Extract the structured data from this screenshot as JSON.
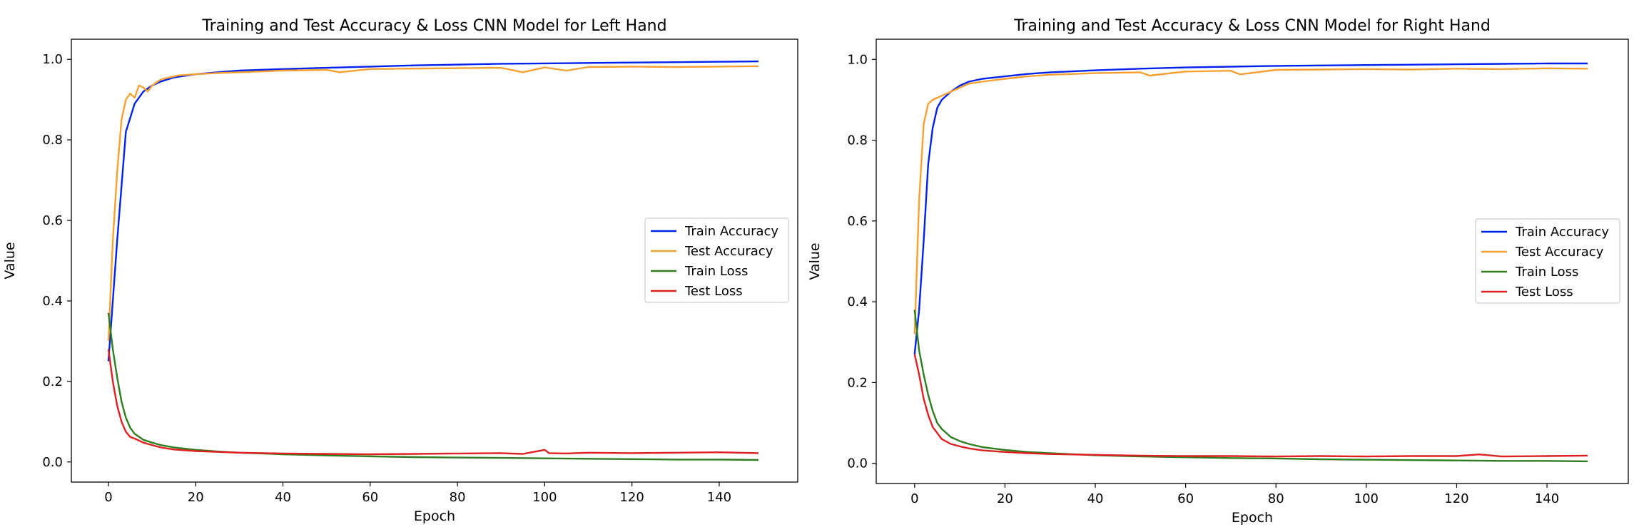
{
  "chart_data": [
    {
      "type": "line",
      "title": "Training and Test Accuracy & Loss CNN Model for Left Hand",
      "xlabel": "Epoch",
      "ylabel": "Value",
      "xlim": [
        -8.5,
        158
      ],
      "ylim": [
        -0.05,
        1.05
      ],
      "xticks": [
        0,
        20,
        40,
        60,
        80,
        100,
        120,
        140
      ],
      "yticks": [
        0.0,
        0.2,
        0.4,
        0.6,
        0.8,
        1.0
      ],
      "ytick_labels": [
        "0.0",
        "0.2",
        "0.4",
        "0.6",
        "0.8",
        "1.0"
      ],
      "grid": false,
      "legend": "center-right",
      "series": [
        {
          "name": "Train Accuracy",
          "color": "#0022ee",
          "x": [
            0,
            2,
            4,
            6,
            8,
            10,
            12,
            15,
            20,
            25,
            30,
            40,
            50,
            60,
            70,
            80,
            90,
            100,
            110,
            120,
            130,
            140,
            149
          ],
          "y": [
            0.25,
            0.55,
            0.82,
            0.89,
            0.92,
            0.935,
            0.945,
            0.955,
            0.963,
            0.968,
            0.972,
            0.976,
            0.979,
            0.982,
            0.985,
            0.987,
            0.989,
            0.99,
            0.991,
            0.992,
            0.993,
            0.994,
            0.995
          ]
        },
        {
          "name": "Test Accuracy",
          "color": "#f5a030",
          "x": [
            0,
            1,
            2,
            3,
            4,
            5,
            6,
            7,
            8,
            9,
            10,
            12,
            14,
            16,
            20,
            25,
            30,
            40,
            50,
            53,
            60,
            70,
            80,
            90,
            95,
            100,
            105,
            110,
            120,
            130,
            140,
            149
          ],
          "y": [
            0.3,
            0.55,
            0.72,
            0.85,
            0.9,
            0.915,
            0.905,
            0.935,
            0.93,
            0.92,
            0.935,
            0.95,
            0.955,
            0.96,
            0.963,
            0.966,
            0.968,
            0.972,
            0.974,
            0.968,
            0.976,
            0.977,
            0.978,
            0.979,
            0.968,
            0.98,
            0.972,
            0.981,
            0.982,
            0.981,
            0.982,
            0.983
          ]
        },
        {
          "name": "Train Loss",
          "color": "#2e7d1e",
          "x": [
            0,
            1,
            2,
            3,
            4,
            5,
            6,
            8,
            10,
            12,
            15,
            20,
            25,
            30,
            40,
            50,
            60,
            70,
            80,
            90,
            100,
            110,
            120,
            130,
            140,
            149
          ],
          "y": [
            0.37,
            0.28,
            0.21,
            0.15,
            0.11,
            0.085,
            0.07,
            0.055,
            0.048,
            0.042,
            0.036,
            0.03,
            0.026,
            0.023,
            0.019,
            0.016,
            0.014,
            0.012,
            0.011,
            0.01,
            0.009,
            0.008,
            0.007,
            0.006,
            0.006,
            0.005
          ]
        },
        {
          "name": "Test Loss",
          "color": "#e02020",
          "x": [
            0,
            1,
            2,
            3,
            4,
            5,
            6,
            8,
            10,
            12,
            15,
            20,
            25,
            30,
            40,
            50,
            60,
            70,
            80,
            90,
            95,
            100,
            101,
            105,
            110,
            120,
            130,
            140,
            149
          ],
          "y": [
            0.28,
            0.2,
            0.14,
            0.1,
            0.075,
            0.062,
            0.058,
            0.048,
            0.042,
            0.036,
            0.031,
            0.027,
            0.025,
            0.023,
            0.021,
            0.02,
            0.019,
            0.02,
            0.021,
            0.022,
            0.02,
            0.03,
            0.022,
            0.021,
            0.023,
            0.022,
            0.023,
            0.024,
            0.022
          ]
        }
      ]
    },
    {
      "type": "line",
      "title": "Training and Test Accuracy & Loss CNN Model for Right Hand",
      "xlabel": "Epoch",
      "ylabel": "Value",
      "xlim": [
        -8.5,
        158
      ],
      "ylim": [
        -0.05,
        1.05
      ],
      "xticks": [
        0,
        20,
        40,
        60,
        80,
        100,
        120,
        140
      ],
      "yticks": [
        0.0,
        0.2,
        0.4,
        0.6,
        0.8,
        1.0
      ],
      "ytick_labels": [
        "0.0",
        "0.2",
        "0.4",
        "0.6",
        "0.8",
        "1.0"
      ],
      "grid": false,
      "legend": "center-right",
      "series": [
        {
          "name": "Train Accuracy",
          "color": "#0022ee",
          "x": [
            0,
            1,
            2,
            3,
            4,
            5,
            6,
            8,
            10,
            12,
            15,
            20,
            25,
            30,
            40,
            50,
            60,
            70,
            80,
            90,
            100,
            110,
            120,
            130,
            140,
            149
          ],
          "y": [
            0.27,
            0.38,
            0.55,
            0.74,
            0.83,
            0.88,
            0.9,
            0.92,
            0.935,
            0.945,
            0.952,
            0.958,
            0.964,
            0.968,
            0.973,
            0.977,
            0.98,
            0.982,
            0.984,
            0.985,
            0.986,
            0.987,
            0.988,
            0.989,
            0.99,
            0.99
          ]
        },
        {
          "name": "Test Accuracy",
          "color": "#f5a030",
          "x": [
            0,
            1,
            2,
            3,
            4,
            5,
            6,
            8,
            10,
            12,
            15,
            20,
            25,
            30,
            40,
            50,
            52,
            60,
            70,
            72,
            80,
            90,
            100,
            110,
            120,
            130,
            140,
            149
          ],
          "y": [
            0.32,
            0.65,
            0.84,
            0.89,
            0.9,
            0.905,
            0.91,
            0.92,
            0.93,
            0.94,
            0.945,
            0.952,
            0.958,
            0.962,
            0.966,
            0.968,
            0.96,
            0.97,
            0.972,
            0.963,
            0.974,
            0.975,
            0.976,
            0.975,
            0.977,
            0.976,
            0.978,
            0.977
          ]
        },
        {
          "name": "Train Loss",
          "color": "#2e7d1e",
          "x": [
            0,
            1,
            2,
            3,
            4,
            5,
            6,
            8,
            10,
            12,
            15,
            20,
            25,
            30,
            40,
            50,
            60,
            70,
            80,
            90,
            100,
            110,
            120,
            130,
            140,
            149
          ],
          "y": [
            0.38,
            0.28,
            0.22,
            0.17,
            0.13,
            0.1,
            0.085,
            0.065,
            0.055,
            0.048,
            0.04,
            0.033,
            0.028,
            0.025,
            0.02,
            0.017,
            0.015,
            0.013,
            0.012,
            0.01,
            0.009,
            0.008,
            0.007,
            0.006,
            0.006,
            0.005
          ]
        },
        {
          "name": "Test Loss",
          "color": "#e02020",
          "x": [
            0,
            1,
            2,
            3,
            4,
            5,
            6,
            8,
            10,
            12,
            15,
            20,
            25,
            30,
            40,
            50,
            60,
            70,
            80,
            90,
            100,
            110,
            120,
            125,
            130,
            140,
            149
          ],
          "y": [
            0.27,
            0.22,
            0.16,
            0.12,
            0.09,
            0.075,
            0.06,
            0.048,
            0.042,
            0.037,
            0.032,
            0.028,
            0.025,
            0.023,
            0.021,
            0.019,
            0.018,
            0.018,
            0.017,
            0.018,
            0.017,
            0.018,
            0.018,
            0.022,
            0.017,
            0.018,
            0.019
          ]
        }
      ]
    }
  ]
}
